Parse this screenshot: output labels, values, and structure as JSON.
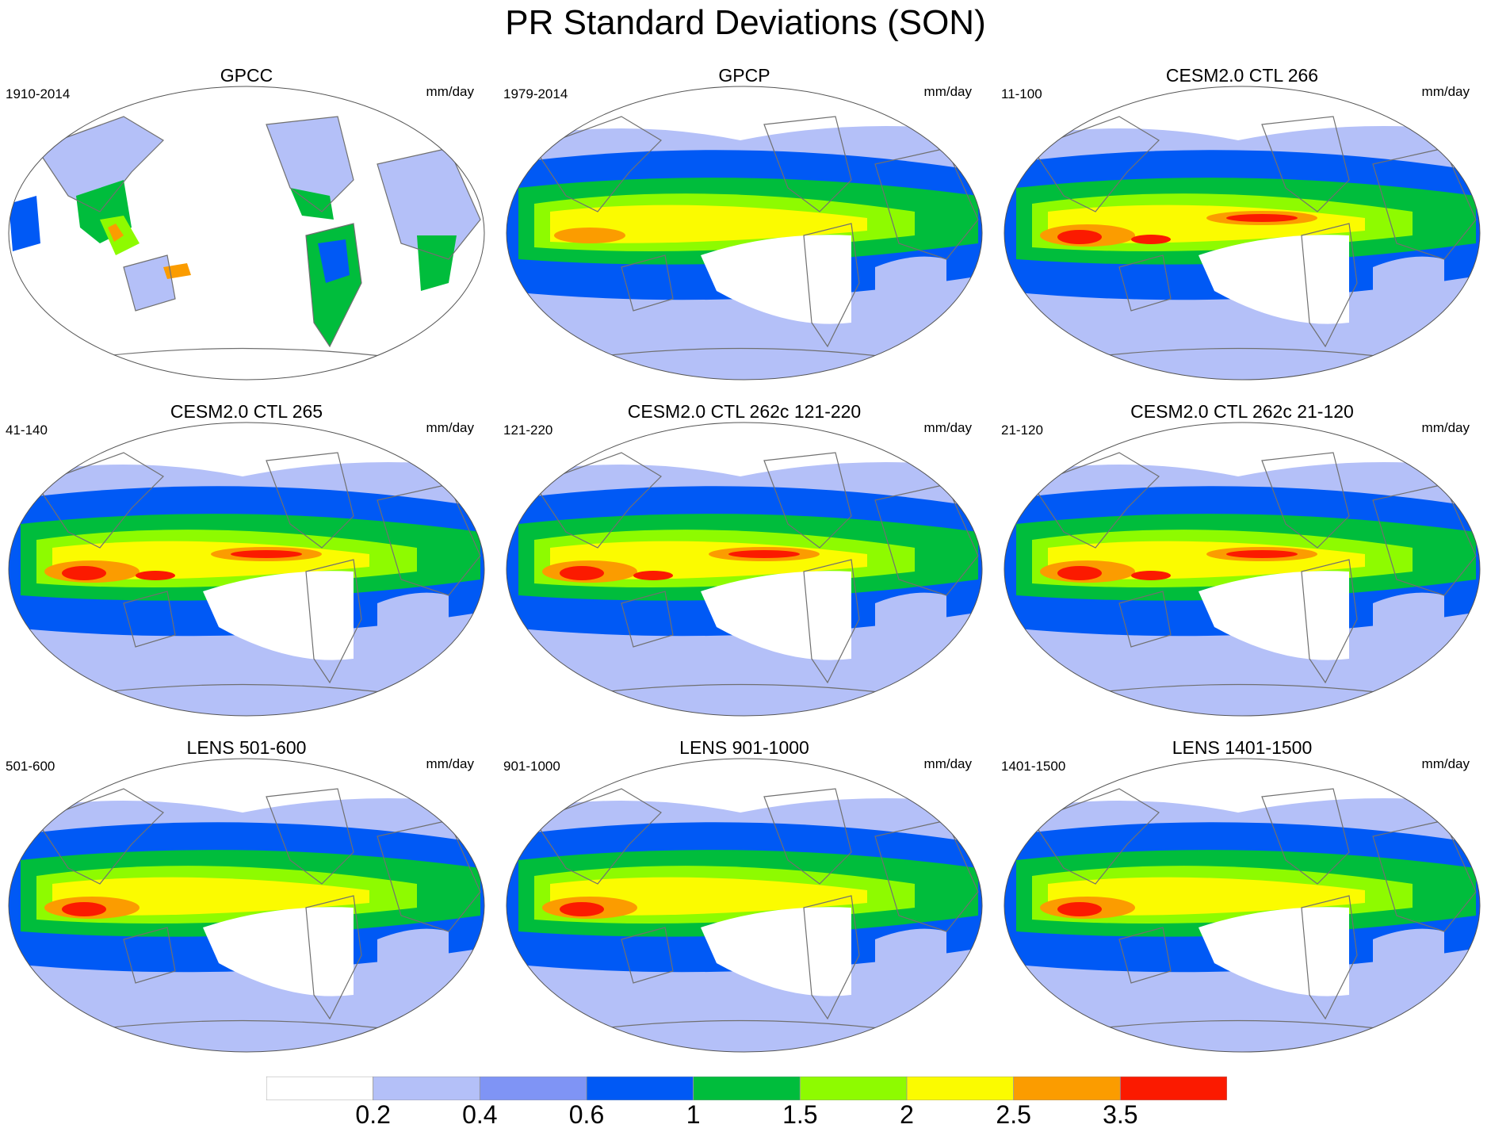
{
  "title": "PR Standard Deviations (SON)",
  "units": "mm/day",
  "panels": [
    {
      "title": "GPCC",
      "years": "1910-2014",
      "variant": "gpcc",
      "intensity": 0
    },
    {
      "title": "GPCP",
      "years": "1979-2014",
      "variant": "obs",
      "intensity": 1
    },
    {
      "title": "CESM2.0 CTL 266",
      "years": "11-100",
      "variant": "model",
      "intensity": 3
    },
    {
      "title": "CESM2.0 CTL 265",
      "years": "41-140",
      "variant": "model",
      "intensity": 3
    },
    {
      "title": "CESM2.0 CTL 262c 121-220",
      "years": "121-220",
      "variant": "model",
      "intensity": 3
    },
    {
      "title": "CESM2.0 CTL 262c 21-120",
      "years": "21-120",
      "variant": "model",
      "intensity": 3
    },
    {
      "title": "LENS 501-600",
      "years": "501-600",
      "variant": "lens",
      "intensity": 2
    },
    {
      "title": "LENS 901-1000",
      "years": "901-1000",
      "variant": "lens",
      "intensity": 2
    },
    {
      "title": "LENS 1401-1500",
      "years": "1401-1500",
      "variant": "lens",
      "intensity": 2
    }
  ],
  "colorbar": {
    "colors": [
      "#ffffff",
      "#b4c0f8",
      "#7f94f5",
      "#0059f5",
      "#00bd3c",
      "#8efb00",
      "#fbfb00",
      "#fb9c00",
      "#fb1a00"
    ],
    "labels": [
      "0.2",
      "0.4",
      "0.6",
      "1",
      "1.5",
      "2",
      "2.5",
      "3.5"
    ]
  }
}
